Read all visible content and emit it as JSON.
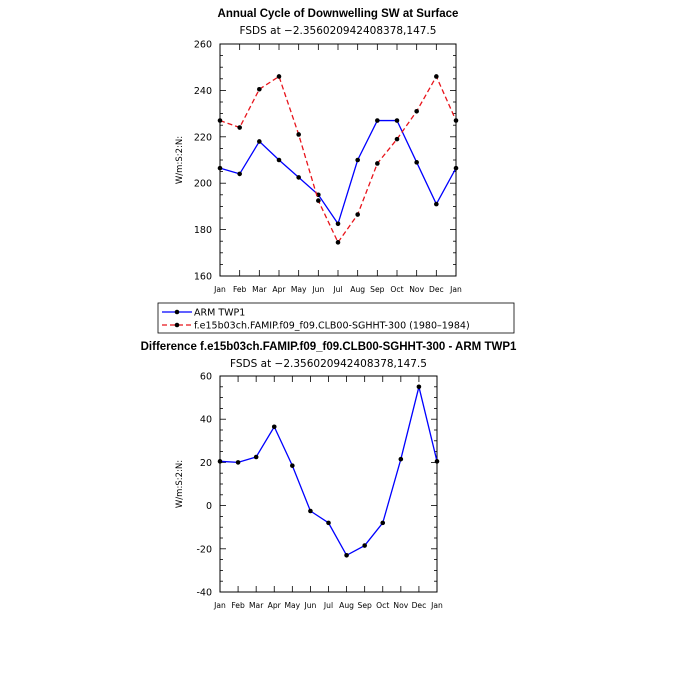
{
  "chart_data": [
    {
      "type": "line",
      "title": "Annual Cycle of Downwelling SW at Surface",
      "subtitle": "FSDS at −2.356020942408378,147.5",
      "xlabel": "",
      "ylabel": "W/m:S:2:N:",
      "categories": [
        "Jan",
        "Feb",
        "Mar",
        "Apr",
        "May",
        "Jun",
        "Jul",
        "Aug",
        "Sep",
        "Oct",
        "Nov",
        "Dec",
        "Jan"
      ],
      "ylim": [
        160,
        260
      ],
      "yticks": [
        160,
        180,
        200,
        220,
        240,
        260
      ],
      "grid": false,
      "legend": "below",
      "series": [
        {
          "name": "ARM TWP1",
          "color": "#0000ff",
          "dash": "solid",
          "values": [
            206.5,
            204,
            218,
            210,
            202.5,
            195,
            182.5,
            210,
            227,
            227,
            209,
            191,
            206.5
          ]
        },
        {
          "name": "f.e15b03ch.FAMIP.f09_f09.CLB00-SGHHT-300 (1980–1984)",
          "color": "#e8141b",
          "dash": "dashed",
          "values": [
            227,
            224,
            240.5,
            246,
            221,
            192.5,
            174.5,
            186.5,
            208.5,
            219,
            231,
            246,
            227
          ]
        }
      ]
    },
    {
      "type": "line",
      "title": "Difference f.e15b03ch.FAMIP.f09_f09.CLB00-SGHHT-300 - ARM TWP1",
      "subtitle": "FSDS at −2.356020942408378,147.5",
      "xlabel": "",
      "ylabel": "W/m:S:2:N:",
      "categories": [
        "Jan",
        "Feb",
        "Mar",
        "Apr",
        "May",
        "Jun",
        "Jul",
        "Aug",
        "Sep",
        "Oct",
        "Nov",
        "Dec",
        "Jan"
      ],
      "ylim": [
        -40,
        60
      ],
      "yticks": [
        -40,
        -20,
        0,
        20,
        40,
        60
      ],
      "grid": false,
      "series": [
        {
          "color": "#0000ff",
          "dash": "solid",
          "values": [
            20.5,
            20,
            22.5,
            36.5,
            18.5,
            -2.5,
            -8,
            -23,
            -18.5,
            -8,
            21.5,
            55,
            20.5
          ]
        }
      ]
    }
  ]
}
